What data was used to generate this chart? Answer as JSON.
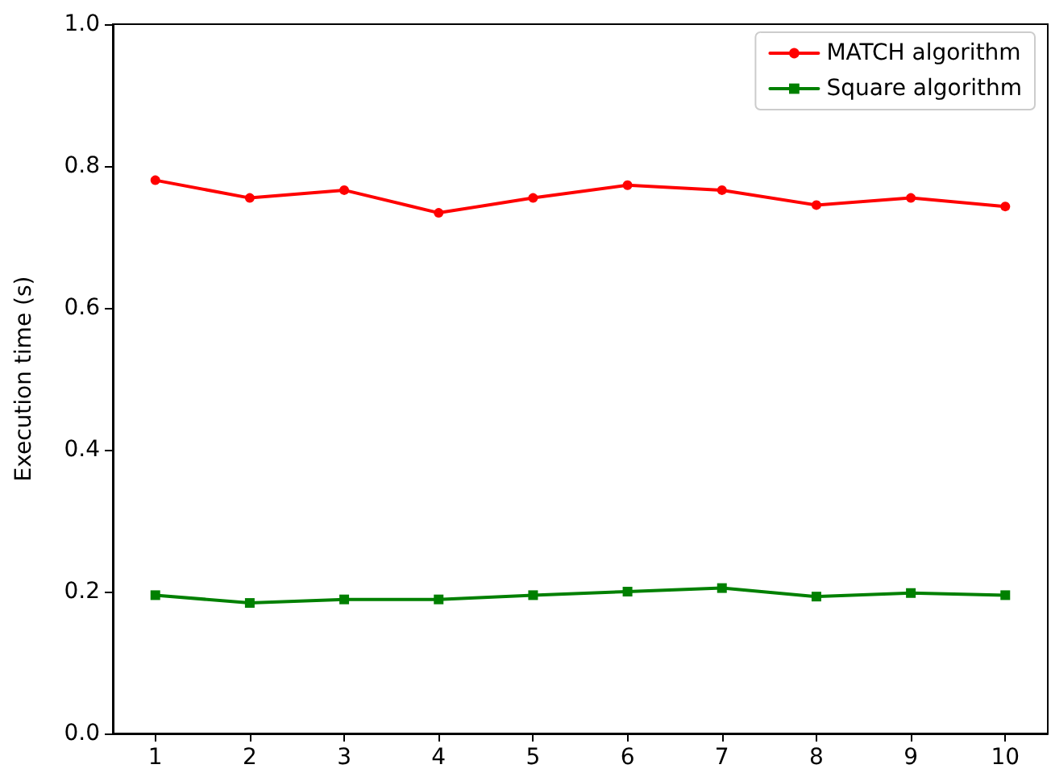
{
  "chart_data": {
    "type": "line",
    "ylabel": "Execution time (s)",
    "x": [
      1,
      2,
      3,
      4,
      5,
      6,
      7,
      8,
      9,
      10
    ],
    "series": [
      {
        "name": "MATCH algorithm",
        "color": "#ff0000",
        "marker": "circle",
        "values": [
          0.78,
          0.755,
          0.766,
          0.734,
          0.755,
          0.773,
          0.766,
          0.745,
          0.755,
          0.743
        ]
      },
      {
        "name": "Square algorithm",
        "color": "#008000",
        "marker": "square",
        "values": [
          0.195,
          0.184,
          0.189,
          0.189,
          0.195,
          0.2,
          0.205,
          0.193,
          0.198,
          0.195
        ]
      }
    ],
    "xlim": [
      0.55,
      10.45
    ],
    "xticks": [
      1,
      2,
      3,
      4,
      5,
      6,
      7,
      8,
      9,
      10
    ],
    "ylim": [
      0,
      1
    ],
    "yticks": [
      {
        "value": 0,
        "label": "0.0"
      },
      0.2,
      0.4,
      0.6,
      0.8,
      {
        "value": 1,
        "label": "1.0"
      }
    ],
    "grid": false,
    "legend": "top right",
    "line_style": "solid"
  }
}
